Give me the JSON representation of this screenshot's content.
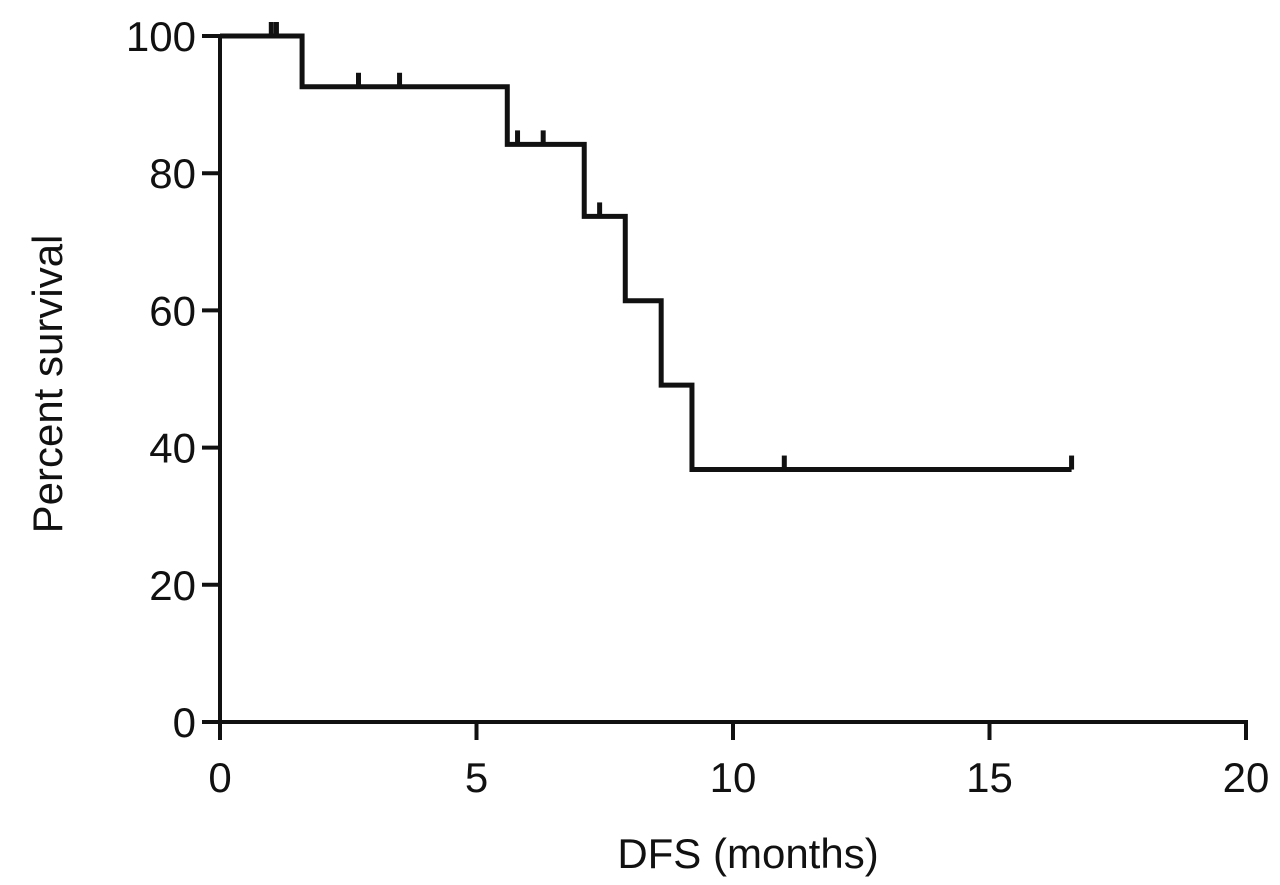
{
  "chart_data": {
    "type": "line",
    "subtype": "step (Kaplan-Meier survival curve)",
    "xlabel": "DFS (months)",
    "ylabel": "Percent survival",
    "xlim": [
      0,
      20
    ],
    "ylim": [
      0,
      100
    ],
    "x_ticks": [
      0,
      5,
      10,
      15,
      20
    ],
    "y_ticks": [
      0,
      20,
      40,
      60,
      80,
      100
    ],
    "grid": false,
    "legend": "none",
    "line_color": "#111111",
    "series": [
      {
        "steps": [
          {
            "x": 0,
            "y": 100
          },
          {
            "x": 1.6,
            "y": 92.6
          },
          {
            "x": 5.6,
            "y": 84.2
          },
          {
            "x": 7.1,
            "y": 73.7
          },
          {
            "x": 7.9,
            "y": 61.4
          },
          {
            "x": 8.6,
            "y": 49.1
          },
          {
            "x": 9.2,
            "y": 36.8
          }
        ],
        "end_x": 16.6,
        "censored": [
          {
            "x": 1.0,
            "y": 100
          },
          {
            "x": 1.1,
            "y": 100
          },
          {
            "x": 2.7,
            "y": 92.6
          },
          {
            "x": 3.5,
            "y": 92.6
          },
          {
            "x": 5.8,
            "y": 84.2
          },
          {
            "x": 6.3,
            "y": 84.2
          },
          {
            "x": 7.4,
            "y": 73.7
          },
          {
            "x": 11.0,
            "y": 36.8
          },
          {
            "x": 16.6,
            "y": 36.8
          }
        ]
      }
    ]
  }
}
